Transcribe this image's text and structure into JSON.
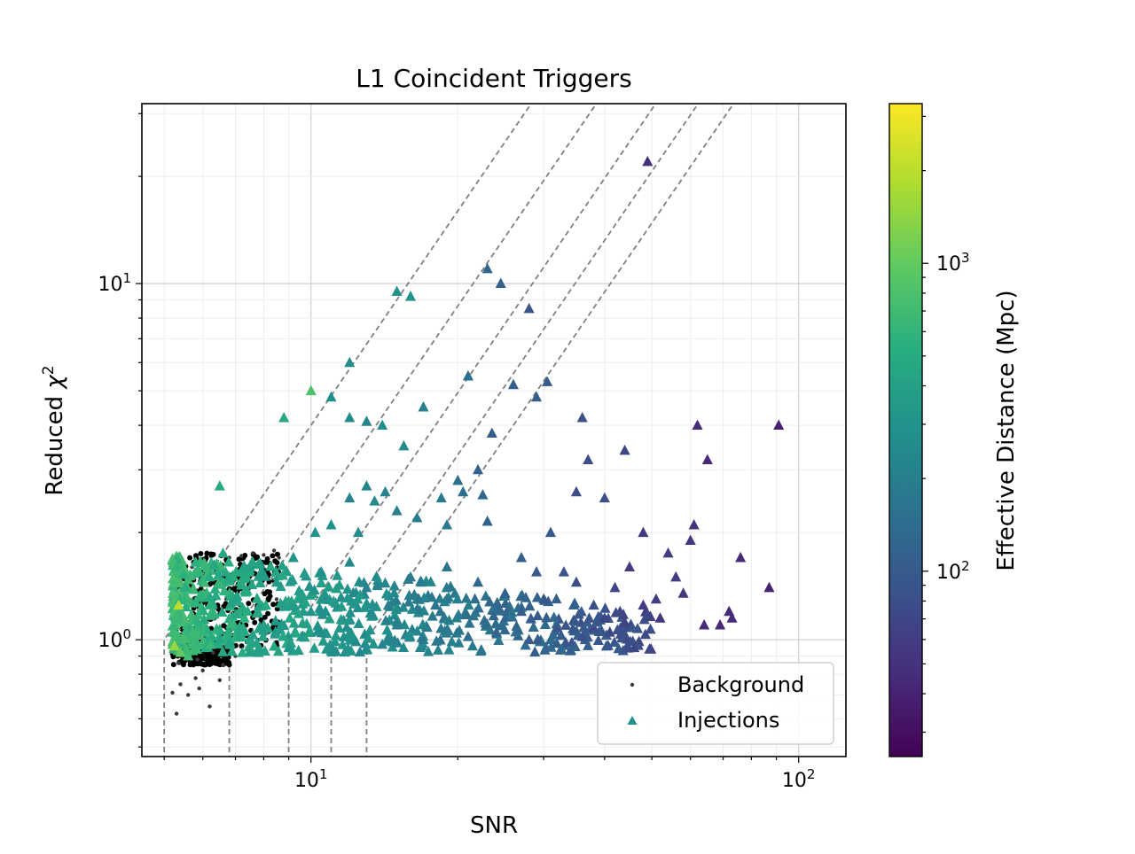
{
  "chart_data": {
    "type": "scatter",
    "title": "L1 Coincident Triggers",
    "xlabel": "SNR",
    "ylabel_prefix": "Reduced ",
    "ylabel_symbol": "χ",
    "ylabel_sup": "2",
    "x_scale": "log",
    "y_scale": "log",
    "xlim": [
      4.5,
      125
    ],
    "ylim": [
      0.47,
      32
    ],
    "grid": true,
    "legend_position": "lower-right",
    "x_ticks": [
      {
        "value": 10,
        "base": "10",
        "exp": "1"
      },
      {
        "value": 100,
        "base": "10",
        "exp": "2"
      }
    ],
    "y_ticks": [
      {
        "value": 1,
        "base": "10",
        "exp": "0"
      },
      {
        "value": 10,
        "base": "10",
        "exp": "1"
      }
    ],
    "colorbar": {
      "label": "Effective Distance (Mpc)",
      "scale": "log",
      "colormap": "viridis",
      "range": [
        25,
        3300
      ],
      "ticks": [
        {
          "value": 100,
          "base": "10",
          "exp": "2"
        },
        {
          "value": 1000,
          "base": "10",
          "exp": "3"
        }
      ]
    },
    "threshold_lines": {
      "color": "#808080",
      "style": "dashed",
      "snr_thresholds": [
        5.0,
        6.8,
        9.0,
        11.0,
        13.0
      ]
    },
    "series": [
      {
        "name": "Background",
        "marker": "dot",
        "color": "#3a3a3a",
        "points": [
          [
            5.3,
            0.62
          ],
          [
            5.2,
            0.71
          ],
          [
            5.6,
            0.7
          ],
          [
            5.9,
            0.73
          ],
          [
            6.2,
            0.65
          ],
          [
            5.4,
            0.75
          ],
          [
            5.8,
            0.78
          ],
          [
            6.5,
            0.77
          ],
          [
            6.0,
            0.82
          ],
          [
            6.6,
            0.85
          ],
          [
            5.5,
            1.55
          ],
          [
            5.7,
            1.6
          ],
          [
            6.1,
            1.62
          ],
          [
            6.8,
            1.7
          ],
          [
            7.2,
            1.72
          ],
          [
            7.6,
            1.75
          ],
          [
            8.0,
            1.73
          ],
          [
            8.4,
            1.78
          ],
          [
            8.6,
            1.7
          ],
          [
            7.9,
            1.62
          ],
          [
            5.5,
            1.4
          ],
          [
            5.3,
            1.3
          ],
          [
            5.6,
            1.45
          ],
          [
            6.4,
            1.5
          ],
          [
            7.0,
            0.9
          ],
          [
            7.4,
            0.95
          ],
          [
            7.8,
            1.0
          ],
          [
            8.2,
            1.05
          ],
          [
            8.5,
            1.3
          ],
          [
            8.7,
            1.5
          ],
          [
            5.35,
            0.86
          ],
          [
            5.45,
            0.92
          ],
          [
            5.65,
            0.95
          ],
          [
            5.85,
            0.88
          ],
          [
            6.3,
            0.92
          ],
          [
            5.25,
            1.1
          ],
          [
            5.4,
            1.2
          ],
          [
            5.9,
            1.25
          ],
          [
            6.7,
            1.3
          ],
          [
            7.3,
            1.4
          ]
        ],
        "dense_regions": [
          {
            "x_range": [
              5.2,
              6.8
            ],
            "y_range": [
              0.85,
              1.0
            ],
            "count": 220
          },
          {
            "x_range": [
              5.2,
              8.6
            ],
            "y_range": [
              0.95,
              1.75
            ],
            "count": 260
          }
        ]
      },
      {
        "name": "Injections",
        "marker": "triangle",
        "color_by": "effective_distance",
        "points": [
          [
            49,
            22,
            50
          ],
          [
            15,
            9.5,
            300
          ],
          [
            16,
            9.2,
            300
          ],
          [
            23,
            11,
            120
          ],
          [
            24.5,
            10,
            110
          ],
          [
            28,
            8.5,
            90
          ],
          [
            12,
            6,
            260
          ],
          [
            10,
            5,
            800
          ],
          [
            8.8,
            4.2,
            450
          ],
          [
            12,
            4.2,
            240
          ],
          [
            13,
            4.1,
            230
          ],
          [
            17,
            4.5,
            200
          ],
          [
            6.5,
            2.7,
            500
          ],
          [
            11,
            4.8,
            280
          ],
          [
            14,
            4.0,
            280
          ],
          [
            15.5,
            3.5,
            250
          ],
          [
            21,
            5.5,
            150
          ],
          [
            26,
            5.2,
            110
          ],
          [
            30.5,
            5.3,
            100
          ],
          [
            29,
            4.8,
            110
          ],
          [
            36,
            4.2,
            80
          ],
          [
            23.5,
            3.8,
            110
          ],
          [
            22,
            3.0,
            120
          ],
          [
            44,
            3.4,
            70
          ],
          [
            37,
            3.2,
            75
          ],
          [
            20,
            2.8,
            150
          ],
          [
            35,
            2.6,
            75
          ],
          [
            40,
            2.5,
            80
          ],
          [
            62,
            4.0,
            45
          ],
          [
            65,
            3.2,
            45
          ],
          [
            91,
            4.0,
            40
          ],
          [
            12,
            2.5,
            220
          ],
          [
            13,
            2.7,
            230
          ],
          [
            13.5,
            2.45,
            250
          ],
          [
            14.2,
            2.6,
            220
          ],
          [
            18.5,
            2.5,
            180
          ],
          [
            20.5,
            2.6,
            150
          ],
          [
            22.5,
            2.55,
            130
          ],
          [
            19,
            2.1,
            180
          ],
          [
            15,
            2.3,
            200
          ],
          [
            16.5,
            2.2,
            190
          ],
          [
            10.2,
            2.0,
            300
          ],
          [
            11,
            2.1,
            290
          ],
          [
            12.5,
            2.0,
            260
          ],
          [
            23,
            2.15,
            120
          ],
          [
            31,
            2.0,
            100
          ],
          [
            48,
            2.0,
            60
          ],
          [
            60,
            1.9,
            55
          ],
          [
            61,
            2.1,
            50
          ],
          [
            54,
            1.75,
            60
          ],
          [
            76,
            1.7,
            45
          ],
          [
            87,
            1.4,
            40
          ],
          [
            64,
            1.1,
            45
          ],
          [
            72,
            1.2,
            45
          ],
          [
            73,
            1.15,
            45
          ],
          [
            69,
            1.1,
            45
          ],
          [
            46,
            0.95,
            70
          ],
          [
            45,
            1.6,
            60
          ],
          [
            51,
            1.3,
            60
          ],
          [
            56,
            1.5,
            60
          ],
          [
            58,
            1.35,
            55
          ],
          [
            52,
            1.15,
            55
          ],
          [
            42,
            1.4,
            70
          ],
          [
            38,
            1.25,
            80
          ],
          [
            33,
            1.55,
            90
          ],
          [
            27,
            1.7,
            110
          ],
          [
            25,
            1.35,
            115
          ],
          [
            22,
            1.45,
            130
          ],
          [
            19,
            1.6,
            160
          ],
          [
            18,
            1.25,
            170
          ],
          [
            16,
            1.5,
            190
          ],
          [
            15,
            1.1,
            200
          ],
          [
            13,
            1.4,
            220
          ],
          [
            12,
            1.65,
            250
          ],
          [
            10.5,
            1.55,
            280
          ],
          [
            10,
            1.2,
            300
          ],
          [
            9.2,
            1.7,
            320
          ],
          [
            8.5,
            1.45,
            350
          ],
          [
            8,
            1.1,
            380
          ],
          [
            7.5,
            1.6,
            400
          ],
          [
            7,
            1.3,
            420
          ],
          [
            6.6,
            1.75,
            450
          ],
          [
            6.2,
            1.5,
            500
          ],
          [
            5.8,
            1.65,
            550
          ],
          [
            5.5,
            1.3,
            600
          ],
          [
            5.3,
            1.15,
            650
          ],
          [
            5.25,
            0.96,
            1500
          ],
          [
            5.4,
            0.92,
            1000
          ],
          [
            5.35,
            1.25,
            2000
          ],
          [
            5.6,
            0.9,
            700
          ],
          [
            6.0,
            1.05,
            600
          ],
          [
            6.8,
            0.98,
            420
          ],
          [
            7.8,
            0.92,
            380
          ],
          [
            9,
            0.95,
            320
          ],
          [
            11,
            0.93,
            280
          ],
          [
            14,
            0.97,
            220
          ],
          [
            17,
            1.0,
            180
          ],
          [
            21,
            1.02,
            140
          ],
          [
            24,
            1.05,
            120
          ],
          [
            28,
            1.0,
            100
          ],
          [
            32,
            1.08,
            90
          ],
          [
            36,
            1.02,
            80
          ],
          [
            40,
            1.15,
            70
          ],
          [
            44,
            1.12,
            65
          ],
          [
            35,
            1.45,
            80
          ],
          [
            30,
            1.3,
            95
          ],
          [
            27,
            1.2,
            105
          ],
          [
            48,
            1.25,
            60
          ],
          [
            41,
            1.05,
            70
          ],
          [
            29,
            1.55,
            100
          ]
        ],
        "dense_band": {
          "x_range": [
            5.2,
            50
          ],
          "y_range": [
            0.92,
            1.75
          ],
          "count": 700
        }
      }
    ]
  }
}
